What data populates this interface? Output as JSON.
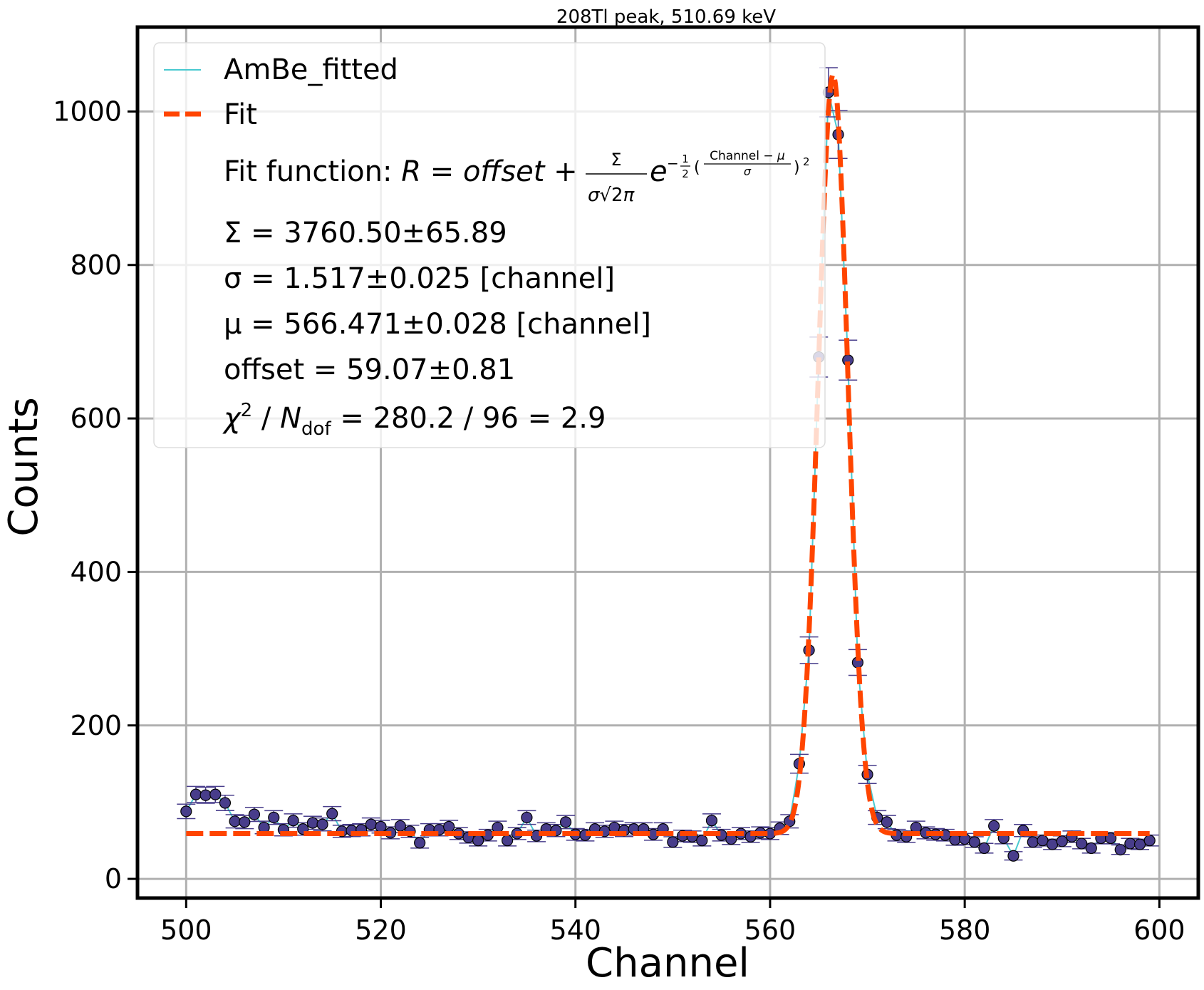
{
  "chart_data": {
    "type": "scatter",
    "title": "208Tl peak, 510.69 keV",
    "xlabel": "Channel",
    "ylabel": "Counts",
    "xlim": [
      495,
      604
    ],
    "ylim": [
      -25,
      1110
    ],
    "xticks": [
      "500",
      "520",
      "540",
      "560",
      "580",
      "600"
    ],
    "yticks": [
      "0",
      "200",
      "400",
      "600",
      "800",
      "1000"
    ],
    "grid": true,
    "legend_placement": "upper-left",
    "colors": {
      "data_line": "#48C9D0",
      "marker_fill": "#483D8B",
      "errorbar": "#483D8B",
      "fit": "#FF4500"
    },
    "series": [
      {
        "name": "AmBe_fitted",
        "kind": "data_with_errorbars",
        "x": [
          500,
          501,
          502,
          503,
          504,
          505,
          506,
          507,
          508,
          509,
          510,
          511,
          512,
          513,
          514,
          515,
          516,
          517,
          518,
          519,
          520,
          521,
          522,
          523,
          524,
          525,
          526,
          527,
          528,
          529,
          530,
          531,
          532,
          533,
          534,
          535,
          536,
          537,
          538,
          539,
          540,
          541,
          542,
          543,
          544,
          545,
          546,
          547,
          548,
          549,
          550,
          551,
          552,
          553,
          554,
          555,
          556,
          557,
          558,
          559,
          560,
          561,
          562,
          563,
          564,
          565,
          566,
          567,
          568,
          569,
          570,
          571,
          572,
          573,
          574,
          575,
          576,
          577,
          578,
          579,
          580,
          581,
          582,
          583,
          584,
          585,
          586,
          587,
          588,
          589,
          590,
          591,
          592,
          593,
          594,
          595,
          596,
          597,
          598,
          599
        ],
        "y": [
          88,
          110,
          109,
          110,
          99,
          75,
          74,
          84,
          67,
          80,
          64,
          76,
          65,
          73,
          71,
          85,
          62,
          63,
          64,
          71,
          68,
          60,
          69,
          62,
          47,
          64,
          64,
          68,
          59,
          54,
          50,
          57,
          67,
          50,
          59,
          80,
          56,
          65,
          63,
          74,
          58,
          57,
          65,
          62,
          67,
          63,
          65,
          65,
          58,
          65,
          48,
          56,
          55,
          50,
          76,
          57,
          52,
          59,
          55,
          60,
          59,
          66,
          75,
          150,
          298,
          680,
          1025,
          970,
          676,
          282,
          136,
          80,
          74,
          57,
          55,
          67,
          60,
          58,
          57,
          51,
          52,
          48,
          40,
          69,
          53,
          30,
          63,
          48,
          50,
          45,
          49,
          55,
          46,
          40,
          53,
          53,
          38,
          46,
          45,
          50
        ]
      },
      {
        "name": "Fit",
        "kind": "gaussian_plus_offset",
        "x_range": [
          500,
          599
        ],
        "params": {
          "Sigma": 3760.5,
          "sigma": 1.517,
          "mu": 566.471,
          "offset": 59.07
        }
      }
    ],
    "annotations": {
      "fit_function_label": "Fit function: ",
      "sigma_sum": "Σ = 3760.50±65.89",
      "sigma_width": "σ = 1.517±0.025 [channel]",
      "mu": "μ = 566.471±0.028 [channel]",
      "offset": "offset = 59.07±0.81",
      "chi2_value": " = 280.2 / 96 = 2.9"
    }
  }
}
